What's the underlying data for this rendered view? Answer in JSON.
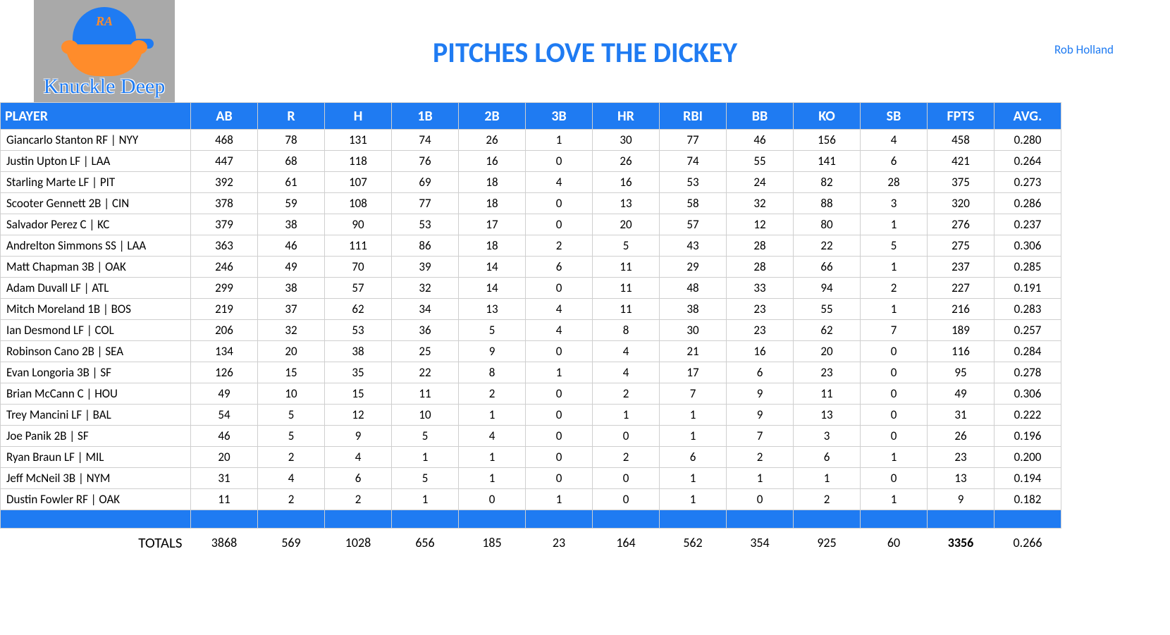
{
  "title": "PITCHES LOVE THE DICKEY",
  "author": "Rob Holland",
  "logo": {
    "cap_text": "RA",
    "script": "Knuckle Deep"
  },
  "colors": {
    "accent": "#1f7bf2",
    "orange": "#ff8c2b",
    "grid": "#cfcfcf",
    "logo_bg": "#a9a9a9"
  },
  "table": {
    "columns": [
      "PLAYER",
      "AB",
      "R",
      "H",
      "1B",
      "2B",
      "3B",
      "HR",
      "RBI",
      "BB",
      "KO",
      "SB",
      "FPTS",
      "AVG."
    ],
    "rows": [
      [
        "Giancarlo Stanton RF | NYY",
        468,
        78,
        131,
        74,
        26,
        1,
        30,
        77,
        46,
        156,
        4,
        458,
        "0.280"
      ],
      [
        "Justin Upton LF | LAA",
        447,
        68,
        118,
        76,
        16,
        0,
        26,
        74,
        55,
        141,
        6,
        421,
        "0.264"
      ],
      [
        "Starling Marte LF | PIT",
        392,
        61,
        107,
        69,
        18,
        4,
        16,
        53,
        24,
        82,
        28,
        375,
        "0.273"
      ],
      [
        "Scooter Gennett 2B | CIN",
        378,
        59,
        108,
        77,
        18,
        0,
        13,
        58,
        32,
        88,
        3,
        320,
        "0.286"
      ],
      [
        "Salvador Perez C | KC",
        379,
        38,
        90,
        53,
        17,
        0,
        20,
        57,
        12,
        80,
        1,
        276,
        "0.237"
      ],
      [
        "Andrelton Simmons SS | LAA",
        363,
        46,
        111,
        86,
        18,
        2,
        5,
        43,
        28,
        22,
        5,
        275,
        "0.306"
      ],
      [
        "Matt Chapman 3B | OAK",
        246,
        49,
        70,
        39,
        14,
        6,
        11,
        29,
        28,
        66,
        1,
        237,
        "0.285"
      ],
      [
        "Adam Duvall LF | ATL",
        299,
        38,
        57,
        32,
        14,
        0,
        11,
        48,
        33,
        94,
        2,
        227,
        "0.191"
      ],
      [
        "Mitch Moreland 1B | BOS",
        219,
        37,
        62,
        34,
        13,
        4,
        11,
        38,
        23,
        55,
        1,
        216,
        "0.283"
      ],
      [
        "Ian Desmond LF | COL",
        206,
        32,
        53,
        36,
        5,
        4,
        8,
        30,
        23,
        62,
        7,
        189,
        "0.257"
      ],
      [
        "Robinson Cano 2B | SEA",
        134,
        20,
        38,
        25,
        9,
        0,
        4,
        21,
        16,
        20,
        0,
        116,
        "0.284"
      ],
      [
        "Evan Longoria 3B | SF",
        126,
        15,
        35,
        22,
        8,
        1,
        4,
        17,
        6,
        23,
        0,
        95,
        "0.278"
      ],
      [
        "Brian McCann C | HOU",
        49,
        10,
        15,
        11,
        2,
        0,
        2,
        7,
        9,
        11,
        0,
        49,
        "0.306"
      ],
      [
        "Trey Mancini LF | BAL",
        54,
        5,
        12,
        10,
        1,
        0,
        1,
        1,
        9,
        13,
        0,
        31,
        "0.222"
      ],
      [
        "Joe Panik 2B | SF",
        46,
        5,
        9,
        5,
        4,
        0,
        0,
        1,
        7,
        3,
        0,
        26,
        "0.196"
      ],
      [
        "Ryan Braun LF | MIL",
        20,
        2,
        4,
        1,
        1,
        0,
        2,
        6,
        2,
        6,
        1,
        23,
        "0.200"
      ],
      [
        "Jeff McNeil 3B | NYM",
        31,
        4,
        6,
        5,
        1,
        0,
        0,
        1,
        1,
        1,
        0,
        13,
        "0.194"
      ],
      [
        "Dustin Fowler RF | OAK",
        11,
        2,
        2,
        1,
        0,
        1,
        0,
        1,
        0,
        2,
        1,
        9,
        "0.182"
      ]
    ],
    "totals_label": "TOTALS",
    "totals": [
      3868,
      569,
      1028,
      656,
      185,
      23,
      164,
      562,
      354,
      925,
      60,
      3356,
      "0.266"
    ],
    "totals_bold_index": 11
  }
}
